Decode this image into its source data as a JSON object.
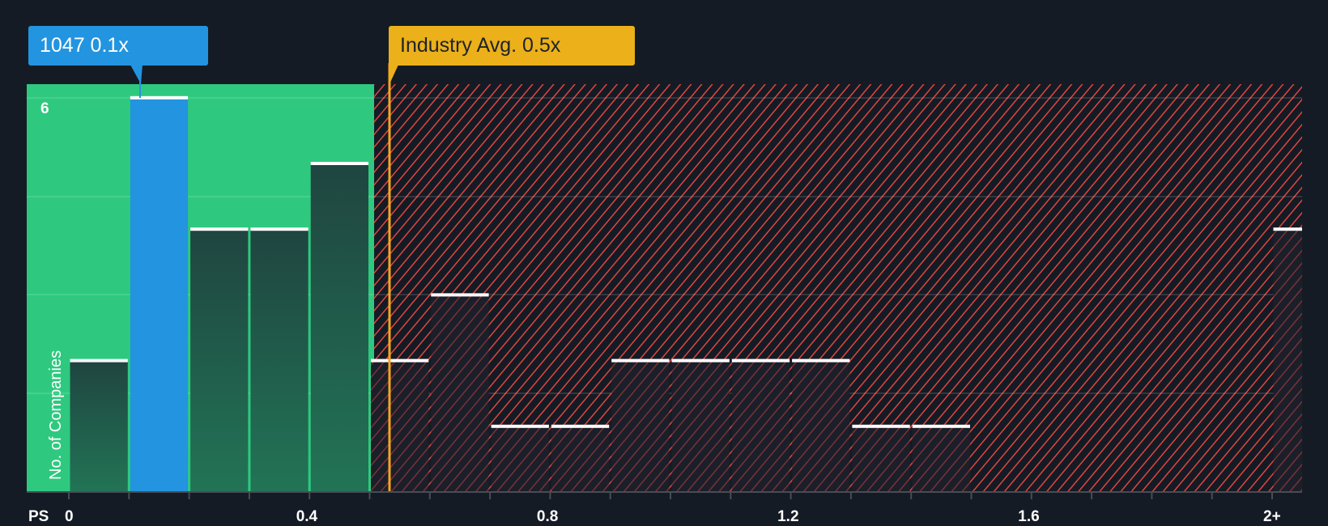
{
  "chart_data": {
    "type": "bar",
    "title": "",
    "xlabel": "PS",
    "ylabel": "No. of Companies",
    "x_tick_labels": [
      "0",
      "0.4",
      "0.8",
      "1.2",
      "1.6",
      "2+"
    ],
    "y_tick_labels": [
      "6"
    ],
    "ylim": [
      0,
      6.2
    ],
    "grid": true,
    "bin_width": 0.1,
    "bins": [
      {
        "start": 0.0,
        "end": 0.1,
        "value": 2
      },
      {
        "start": 0.1,
        "end": 0.2,
        "value": 6,
        "highlight": true
      },
      {
        "start": 0.2,
        "end": 0.3,
        "value": 4
      },
      {
        "start": 0.3,
        "end": 0.4,
        "value": 4
      },
      {
        "start": 0.4,
        "end": 0.5,
        "value": 5
      },
      {
        "start": 0.5,
        "end": 0.6,
        "value": 2
      },
      {
        "start": 0.6,
        "end": 0.7,
        "value": 3
      },
      {
        "start": 0.7,
        "end": 0.8,
        "value": 1
      },
      {
        "start": 0.8,
        "end": 0.9,
        "value": 1
      },
      {
        "start": 0.9,
        "end": 1.0,
        "value": 2
      },
      {
        "start": 1.0,
        "end": 1.1,
        "value": 2
      },
      {
        "start": 1.1,
        "end": 1.2,
        "value": 2
      },
      {
        "start": 1.2,
        "end": 1.3,
        "value": 2
      },
      {
        "start": 1.3,
        "end": 1.4,
        "value": 1
      },
      {
        "start": 1.4,
        "end": 1.5,
        "value": 1
      },
      {
        "start": 2.0,
        "end": 2.1,
        "value": 4,
        "label": "2+"
      }
    ],
    "annotations": [
      {
        "label": "1047 0.1x",
        "x": 0.12,
        "color": "#2394df"
      },
      {
        "label": "Industry Avg. 0.5x",
        "x": 0.534,
        "color": "#ebb01a"
      }
    ],
    "regions": [
      {
        "from": 0,
        "to": 0.51,
        "color": "#2ec97f",
        "meaning": "below industry average"
      },
      {
        "from": 0.51,
        "to": 2.1,
        "color": "#e0453f",
        "pattern": "hatched",
        "meaning": "above industry average"
      }
    ]
  },
  "callouts": {
    "company": "1047 0.1x",
    "industry": "Industry Avg. 0.5x"
  },
  "axis": {
    "x_title": "PS",
    "y_title": "No. of Companies",
    "y_tick_top": "6"
  },
  "colors": {
    "background": "#151b24",
    "green_zone": "#2ec97f",
    "red_hatch": "#e0453f",
    "highlight_bar": "#2394df",
    "industry_line": "#f5a623",
    "bar_top": "#ffffff"
  }
}
